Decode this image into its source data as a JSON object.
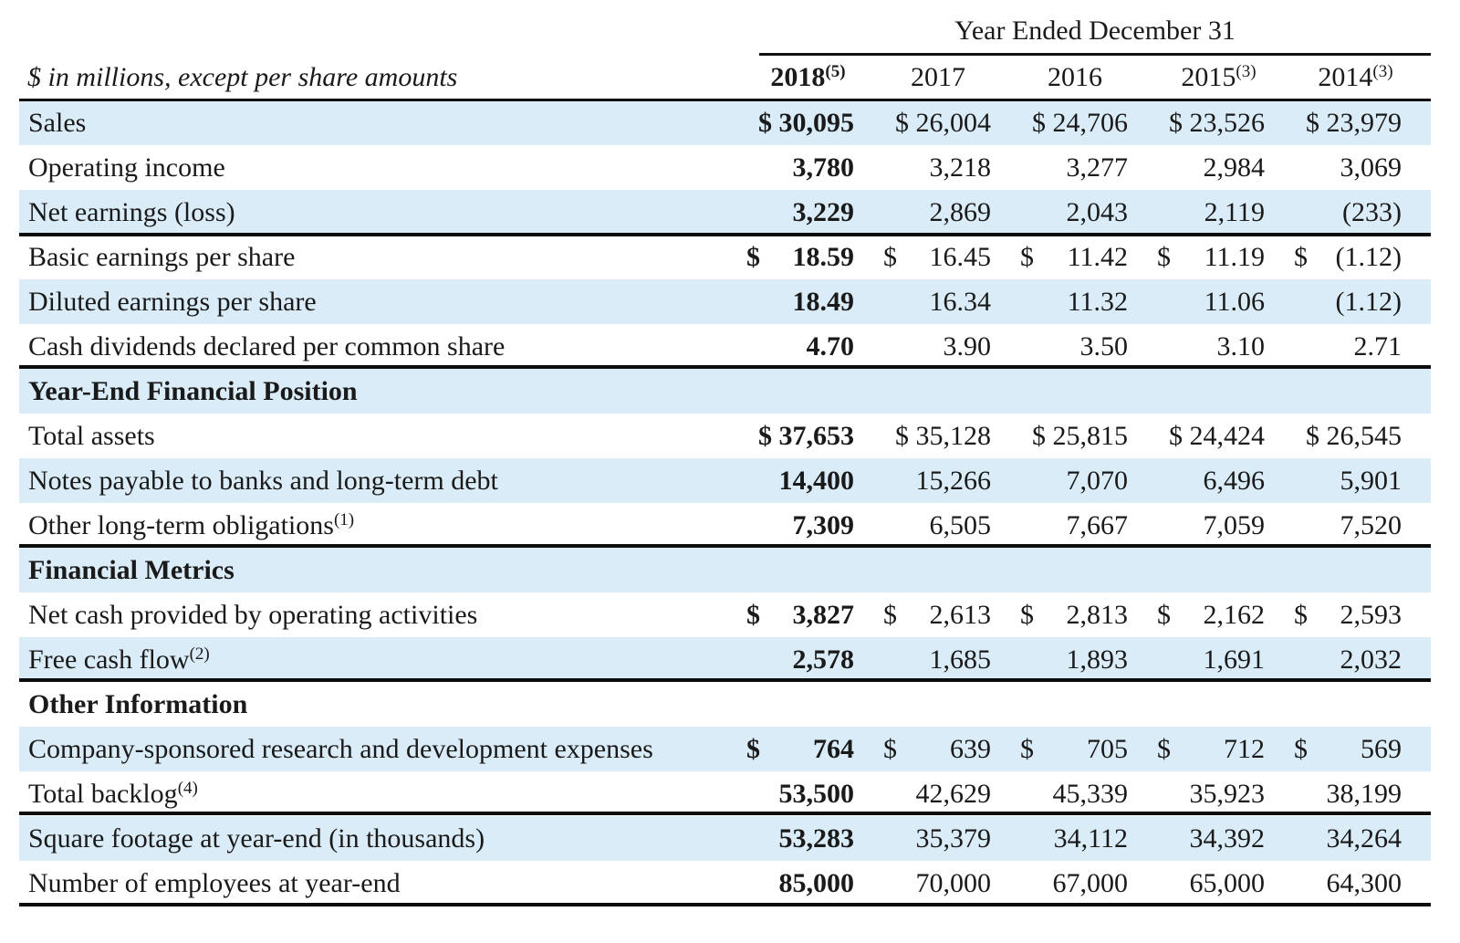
{
  "header": {
    "year_ended": "Year Ended December 31",
    "label": "$ in millions, except per share amounts",
    "years": [
      {
        "year": "2018",
        "note": "(5)",
        "bold": true
      },
      {
        "year": "2017",
        "note": "",
        "bold": false
      },
      {
        "year": "2016",
        "note": "",
        "bold": false
      },
      {
        "year": "2015",
        "note": "(3)",
        "bold": false
      },
      {
        "year": "2014",
        "note": "(3)",
        "bold": false
      }
    ]
  },
  "rows": [
    {
      "label": "Sales",
      "note": "",
      "shade": true,
      "section": false,
      "dollar_mode": "inline",
      "values": [
        "30,095",
        "26,004",
        "24,706",
        "23,526",
        "23,979"
      ]
    },
    {
      "label": "Operating income",
      "note": "",
      "shade": false,
      "section": false,
      "dollar_mode": "none",
      "values": [
        "3,780",
        "3,218",
        "3,277",
        "2,984",
        "3,069"
      ]
    },
    {
      "label": "Net earnings (loss)",
      "note": "",
      "shade": true,
      "section": false,
      "dollar_mode": "none",
      "values": [
        "3,229",
        "2,869",
        "2,043",
        "2,119",
        "(233)"
      ]
    },
    {
      "label": "Basic earnings per share",
      "note": "",
      "shade": false,
      "section": false,
      "dollar_mode": "sep",
      "values": [
        "18.59",
        "16.45",
        "11.42",
        "11.19",
        "(1.12)"
      ]
    },
    {
      "label": "Diluted earnings per share",
      "note": "",
      "shade": true,
      "section": false,
      "dollar_mode": "none",
      "values": [
        "18.49",
        "16.34",
        "11.32",
        "11.06",
        "(1.12)"
      ]
    },
    {
      "label": "Cash dividends declared per common share",
      "note": "",
      "shade": false,
      "section": false,
      "dollar_mode": "none",
      "values": [
        "4.70",
        "3.90",
        "3.50",
        "3.10",
        "2.71"
      ]
    },
    {
      "label": "Year-End Financial Position",
      "note": "",
      "shade": true,
      "section": true,
      "dollar_mode": "none",
      "values": [
        "",
        "",
        "",
        "",
        ""
      ]
    },
    {
      "label": "Total assets",
      "note": "",
      "shade": false,
      "section": false,
      "dollar_mode": "inline",
      "values": [
        "37,653",
        "35,128",
        "25,815",
        "24,424",
        "26,545"
      ]
    },
    {
      "label": "Notes payable to banks and long-term debt",
      "note": "",
      "shade": true,
      "section": false,
      "dollar_mode": "none",
      "values": [
        "14,400",
        "15,266",
        "7,070",
        "6,496",
        "5,901"
      ]
    },
    {
      "label": "Other long-term obligations",
      "note": "(1)",
      "shade": false,
      "section": false,
      "dollar_mode": "none",
      "values": [
        "7,309",
        "6,505",
        "7,667",
        "7,059",
        "7,520"
      ]
    },
    {
      "label": "Financial Metrics",
      "note": "",
      "shade": true,
      "section": true,
      "dollar_mode": "none",
      "values": [
        "",
        "",
        "",
        "",
        ""
      ]
    },
    {
      "label": "Net cash provided by operating activities",
      "note": "",
      "shade": false,
      "section": false,
      "dollar_mode": "sep",
      "values": [
        "3,827",
        "2,613",
        "2,813",
        "2,162",
        "2,593"
      ]
    },
    {
      "label": "Free cash flow",
      "note": "(2)",
      "shade": true,
      "section": false,
      "dollar_mode": "none",
      "values": [
        "2,578",
        "1,685",
        "1,893",
        "1,691",
        "2,032"
      ]
    },
    {
      "label": "Other Information",
      "note": "",
      "shade": false,
      "section": true,
      "dollar_mode": "none",
      "values": [
        "",
        "",
        "",
        "",
        ""
      ]
    },
    {
      "label": "Company-sponsored research and development expenses",
      "note": "",
      "shade": true,
      "section": false,
      "dollar_mode": "sep",
      "values": [
        "764",
        "639",
        "705",
        "712",
        "569"
      ]
    },
    {
      "label": "Total backlog",
      "note": "(4)",
      "shade": false,
      "section": false,
      "dollar_mode": "none",
      "values": [
        "53,500",
        "42,629",
        "45,339",
        "35,923",
        "38,199"
      ]
    },
    {
      "label": "Square footage at year-end (in thousands)",
      "note": "",
      "shade": true,
      "section": false,
      "dollar_mode": "none",
      "values": [
        "53,283",
        "35,379",
        "34,112",
        "34,392",
        "34,264"
      ]
    },
    {
      "label": "Number of employees at year-end",
      "note": "",
      "shade": false,
      "section": false,
      "dollar_mode": "none",
      "values": [
        "85,000",
        "70,000",
        "67,000",
        "65,000",
        "64,300"
      ]
    }
  ]
}
